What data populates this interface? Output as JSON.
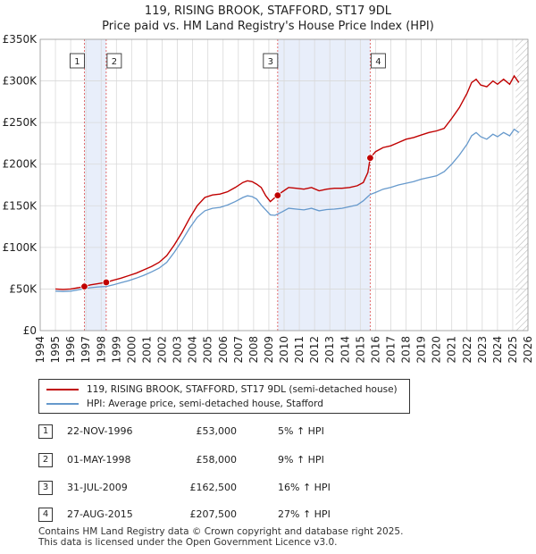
{
  "header": {
    "title": "119, RISING BROOK, STAFFORD, ST17 9DL",
    "subtitle": "Price paid vs. HM Land Registry's House Price Index (HPI)"
  },
  "colors": {
    "property": "#c00000",
    "hpi": "#6699cc",
    "shade": "#e8eefa",
    "grid": "#d9d9d9",
    "marker_line": "#e06060"
  },
  "legend": {
    "property_label": "119, RISING BROOK, STAFFORD, ST17 9DL (semi-detached house)",
    "hpi_label": "HPI: Average price, semi-detached house, Stafford"
  },
  "sales": [
    {
      "num": "1",
      "date": "22-NOV-1996",
      "price": "£53,000",
      "hpi": "5% ↑ HPI"
    },
    {
      "num": "2",
      "date": "01-MAY-1998",
      "price": "£58,000",
      "hpi": "9% ↑ HPI"
    },
    {
      "num": "3",
      "date": "31-JUL-2009",
      "price": "£162,500",
      "hpi": "16% ↑ HPI"
    },
    {
      "num": "4",
      "date": "27-AUG-2015",
      "price": "£207,500",
      "hpi": "27% ↑ HPI"
    }
  ],
  "footer": {
    "line1": "Contains HM Land Registry data © Crown copyright and database right 2025.",
    "line2": "This data is licensed under the Open Government Licence v3.0."
  },
  "chart_data": {
    "type": "line",
    "xlim": [
      1994,
      2026
    ],
    "ylim": [
      0,
      350000
    ],
    "yticks": [
      {
        "value": 0,
        "label": "£0"
      },
      {
        "value": 50000,
        "label": "£50K"
      },
      {
        "value": 100000,
        "label": "£100K"
      },
      {
        "value": 150000,
        "label": "£150K"
      },
      {
        "value": 200000,
        "label": "£200K"
      },
      {
        "value": 250000,
        "label": "£250K"
      },
      {
        "value": 300000,
        "label": "£300K"
      },
      {
        "value": 350000,
        "label": "£350K"
      }
    ],
    "xticks": [
      "1994",
      "1995",
      "1996",
      "1997",
      "1998",
      "1999",
      "2000",
      "2001",
      "2002",
      "2003",
      "2004",
      "2005",
      "2006",
      "2007",
      "2008",
      "2009",
      "2010",
      "2011",
      "2012",
      "2013",
      "2014",
      "2015",
      "2016",
      "2017",
      "2018",
      "2019",
      "2020",
      "2021",
      "2022",
      "2023",
      "2024",
      "2025",
      "2026"
    ],
    "shaded_ranges": [
      [
        1996.9,
        1998.33
      ],
      [
        2009.58,
        2015.65
      ]
    ],
    "hatched_from": 2025.2,
    "markers": [
      {
        "label": "1",
        "x": 1996.9,
        "y": 53000
      },
      {
        "label": "2",
        "x": 1998.33,
        "y": 58000
      },
      {
        "label": "3",
        "x": 2009.58,
        "y": 162500
      },
      {
        "label": "4",
        "x": 2015.65,
        "y": 207500
      }
    ],
    "series": [
      {
        "name": "119, RISING BROOK, STAFFORD, ST17 9DL (semi-detached house)",
        "x": [
          1995.0,
          1995.5,
          1996.0,
          1996.5,
          1996.9,
          1997.3,
          1997.8,
          1998.33,
          1998.8,
          1999.3,
          1999.8,
          2000.3,
          2000.8,
          2001.3,
          2001.8,
          2002.3,
          2002.8,
          2003.3,
          2003.8,
          2004.3,
          2004.8,
          2005.3,
          2005.8,
          2006.3,
          2006.8,
          2007.3,
          2007.6,
          2007.9,
          2008.2,
          2008.5,
          2008.8,
          2009.1,
          2009.4,
          2009.58,
          2009.9,
          2010.3,
          2010.8,
          2011.3,
          2011.8,
          2012.3,
          2012.8,
          2013.3,
          2013.8,
          2014.3,
          2014.8,
          2015.2,
          2015.5,
          2015.65,
          2016.0,
          2016.5,
          2017.0,
          2017.5,
          2018.0,
          2018.5,
          2019.0,
          2019.5,
          2020.0,
          2020.5,
          2021.0,
          2021.5,
          2022.0,
          2022.3,
          2022.6,
          2022.9,
          2023.3,
          2023.7,
          2024.0,
          2024.4,
          2024.8,
          2025.1,
          2025.4
        ],
        "values": [
          50000,
          49500,
          50000,
          51500,
          53000,
          55000,
          56500,
          58000,
          60500,
          63000,
          66000,
          69000,
          73000,
          77000,
          82000,
          90000,
          103000,
          118000,
          135000,
          150000,
          160000,
          163000,
          164000,
          167000,
          172000,
          178000,
          180000,
          179000,
          176000,
          172000,
          162000,
          155000,
          160000,
          162500,
          167000,
          172000,
          171000,
          170000,
          172000,
          168000,
          170000,
          171000,
          171000,
          172000,
          174000,
          178000,
          190000,
          207500,
          215000,
          220000,
          222000,
          226000,
          230000,
          232000,
          235000,
          238000,
          240000,
          243000,
          255000,
          268000,
          285000,
          298000,
          302000,
          295000,
          293000,
          300000,
          296000,
          302000,
          296000,
          306000,
          298000
        ]
      },
      {
        "name": "HPI: Average price, semi-detached house, Stafford",
        "x": [
          1995.0,
          1995.5,
          1996.0,
          1996.5,
          1996.9,
          1997.3,
          1997.8,
          1998.33,
          1998.8,
          1999.3,
          1999.8,
          2000.3,
          2000.8,
          2001.3,
          2001.8,
          2002.3,
          2002.8,
          2003.3,
          2003.8,
          2004.3,
          2004.8,
          2005.3,
          2005.8,
          2006.3,
          2006.8,
          2007.3,
          2007.6,
          2007.9,
          2008.2,
          2008.5,
          2008.8,
          2009.1,
          2009.4,
          2009.58,
          2009.9,
          2010.3,
          2010.8,
          2011.3,
          2011.8,
          2012.3,
          2012.8,
          2013.3,
          2013.8,
          2014.3,
          2014.8,
          2015.2,
          2015.5,
          2015.65,
          2016.0,
          2016.5,
          2017.0,
          2017.5,
          2018.0,
          2018.5,
          2019.0,
          2019.5,
          2020.0,
          2020.5,
          2021.0,
          2021.5,
          2022.0,
          2022.3,
          2022.6,
          2022.9,
          2023.3,
          2023.7,
          2024.0,
          2024.4,
          2024.8,
          2025.1,
          2025.4
        ],
        "values": [
          47500,
          47000,
          47500,
          49000,
          50500,
          51500,
          52500,
          53000,
          55000,
          57500,
          60000,
          63000,
          66500,
          70500,
          75000,
          82000,
          94000,
          108000,
          123000,
          136000,
          144000,
          147000,
          148000,
          151000,
          155000,
          160000,
          162000,
          161000,
          158000,
          151000,
          145000,
          139000,
          138500,
          140000,
          143000,
          147000,
          146000,
          145000,
          147000,
          144000,
          145500,
          146000,
          147000,
          149000,
          151000,
          156000,
          161000,
          163500,
          166000,
          170000,
          172000,
          175000,
          177000,
          179000,
          182000,
          184000,
          186000,
          191000,
          200000,
          211000,
          224000,
          234000,
          238000,
          233000,
          230000,
          236000,
          233000,
          238000,
          234000,
          242000,
          238000
        ]
      }
    ]
  }
}
